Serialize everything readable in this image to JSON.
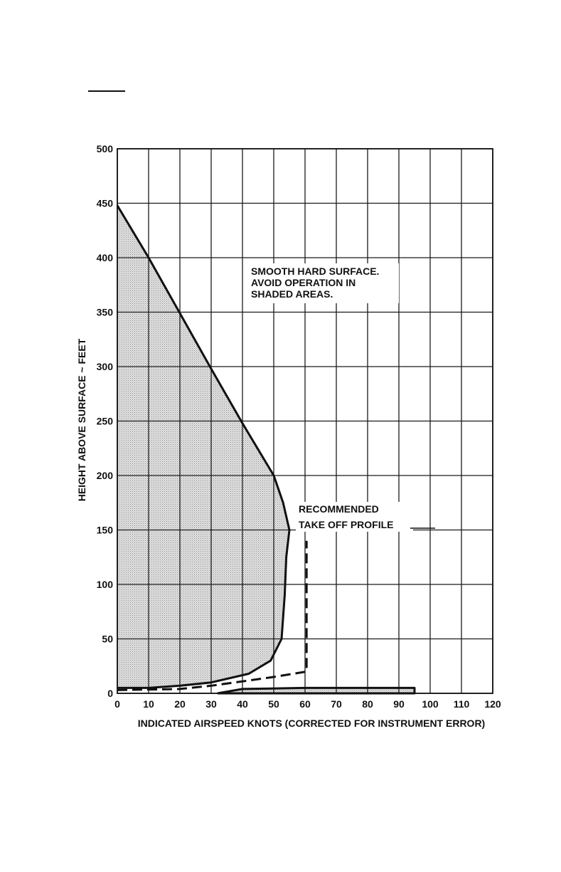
{
  "chart_data": {
    "type": "area",
    "title": "",
    "xlabel": "INDICATED AIRSPEED KNOTS (CORRECTED FOR INSTRUMENT ERROR)",
    "ylabel": "HEIGHT ABOVE SURFACE ~ FEET",
    "xlim": [
      0,
      120
    ],
    "ylim": [
      0,
      500
    ],
    "x_ticks": [
      0,
      10,
      20,
      30,
      40,
      50,
      60,
      70,
      80,
      90,
      100,
      110,
      120
    ],
    "y_ticks": [
      0,
      50,
      100,
      150,
      200,
      250,
      300,
      350,
      400,
      450,
      500
    ],
    "grid": true,
    "annotations": {
      "surface_note": [
        "SMOOTH HARD SURFACE.",
        "AVOID OPERATION IN",
        "SHADED AREAS."
      ],
      "profile_label": [
        "RECOMMENDED",
        "TAKE OFF PROFILE"
      ]
    },
    "series": [
      {
        "name": "",
        "kind": "shaded-avoid-region",
        "x": [
          0,
          10,
          20,
          30,
          40,
          50,
          53,
          55,
          54,
          53.5,
          52.5,
          49,
          42,
          30,
          20,
          10,
          0
        ],
        "y": [
          448,
          400,
          349,
          298,
          248,
          200,
          175,
          150,
          125,
          90,
          50,
          30,
          18,
          10,
          7,
          5,
          5
        ]
      },
      {
        "name": "",
        "kind": "shaded-avoid-region-low",
        "x": [
          32,
          40,
          60,
          80,
          95,
          95,
          40,
          32
        ],
        "y": [
          0,
          4,
          5,
          5,
          5,
          0,
          0,
          0
        ]
      },
      {
        "name": "RECOMMENDED TAKE OFF PROFILE",
        "kind": "dashed-line",
        "x": [
          0,
          20,
          30,
          40,
          50,
          60.5,
          60.5,
          60.5
        ],
        "y": [
          3,
          4,
          7,
          11,
          15,
          20,
          80,
          140
        ]
      }
    ]
  }
}
